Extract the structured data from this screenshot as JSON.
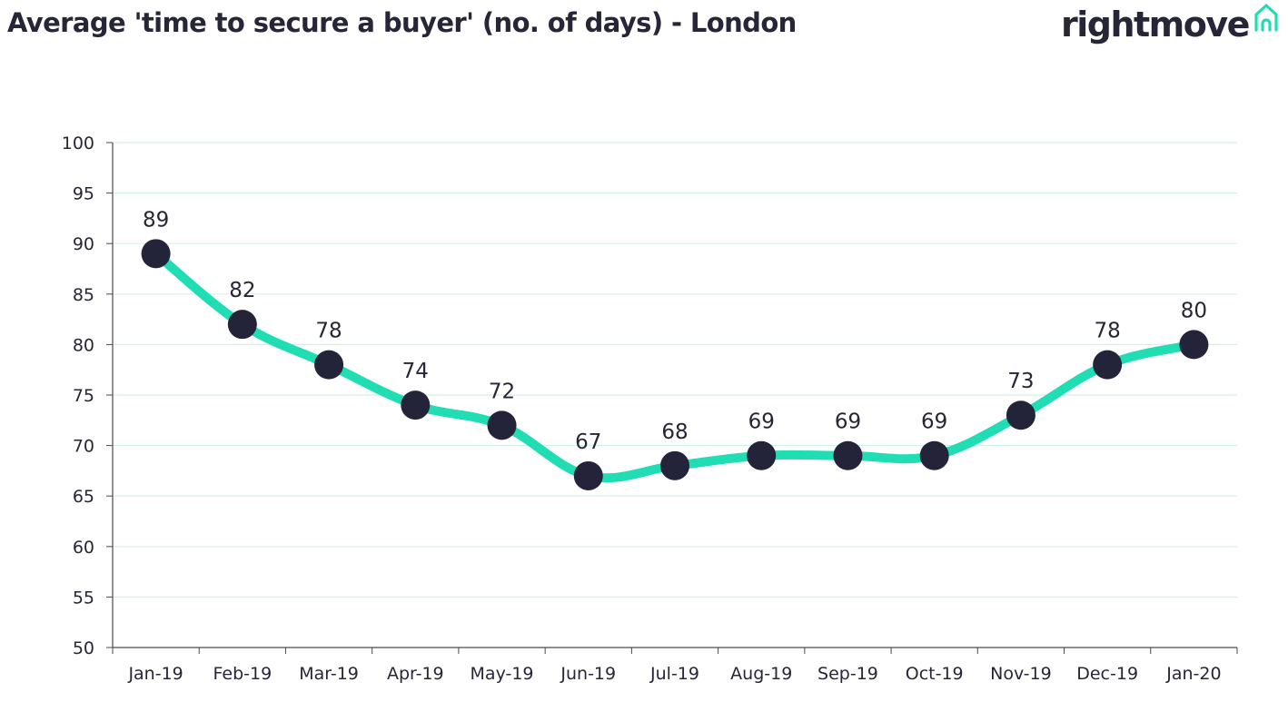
{
  "header": {
    "title": "Average 'time to secure a buyer' (no. of days) - London",
    "brand": "rightmove"
  },
  "colors": {
    "line": "#20DDB4",
    "marker": "#23233A",
    "text": "#262637",
    "grid": "#D2F2E9",
    "axis": "#4A4A4A"
  },
  "icons": [
    "house-logo-icon"
  ],
  "chart_data": {
    "type": "line",
    "categories": [
      "Jan-19",
      "Feb-19",
      "Mar-19",
      "Apr-19",
      "May-19",
      "Jun-19",
      "Jul-19",
      "Aug-19",
      "Sep-19",
      "Oct-19",
      "Nov-19",
      "Dec-19",
      "Jan-20"
    ],
    "series": [
      {
        "values": [
          89,
          82,
          78,
          74,
          72,
          67,
          68,
          69,
          69,
          69,
          73,
          78,
          80
        ]
      }
    ],
    "ylim": [
      50,
      100
    ],
    "yticks": [
      50,
      55,
      60,
      65,
      70,
      75,
      80,
      85,
      90,
      95,
      100
    ],
    "grid": true,
    "data_labels": true,
    "legend": "none"
  }
}
